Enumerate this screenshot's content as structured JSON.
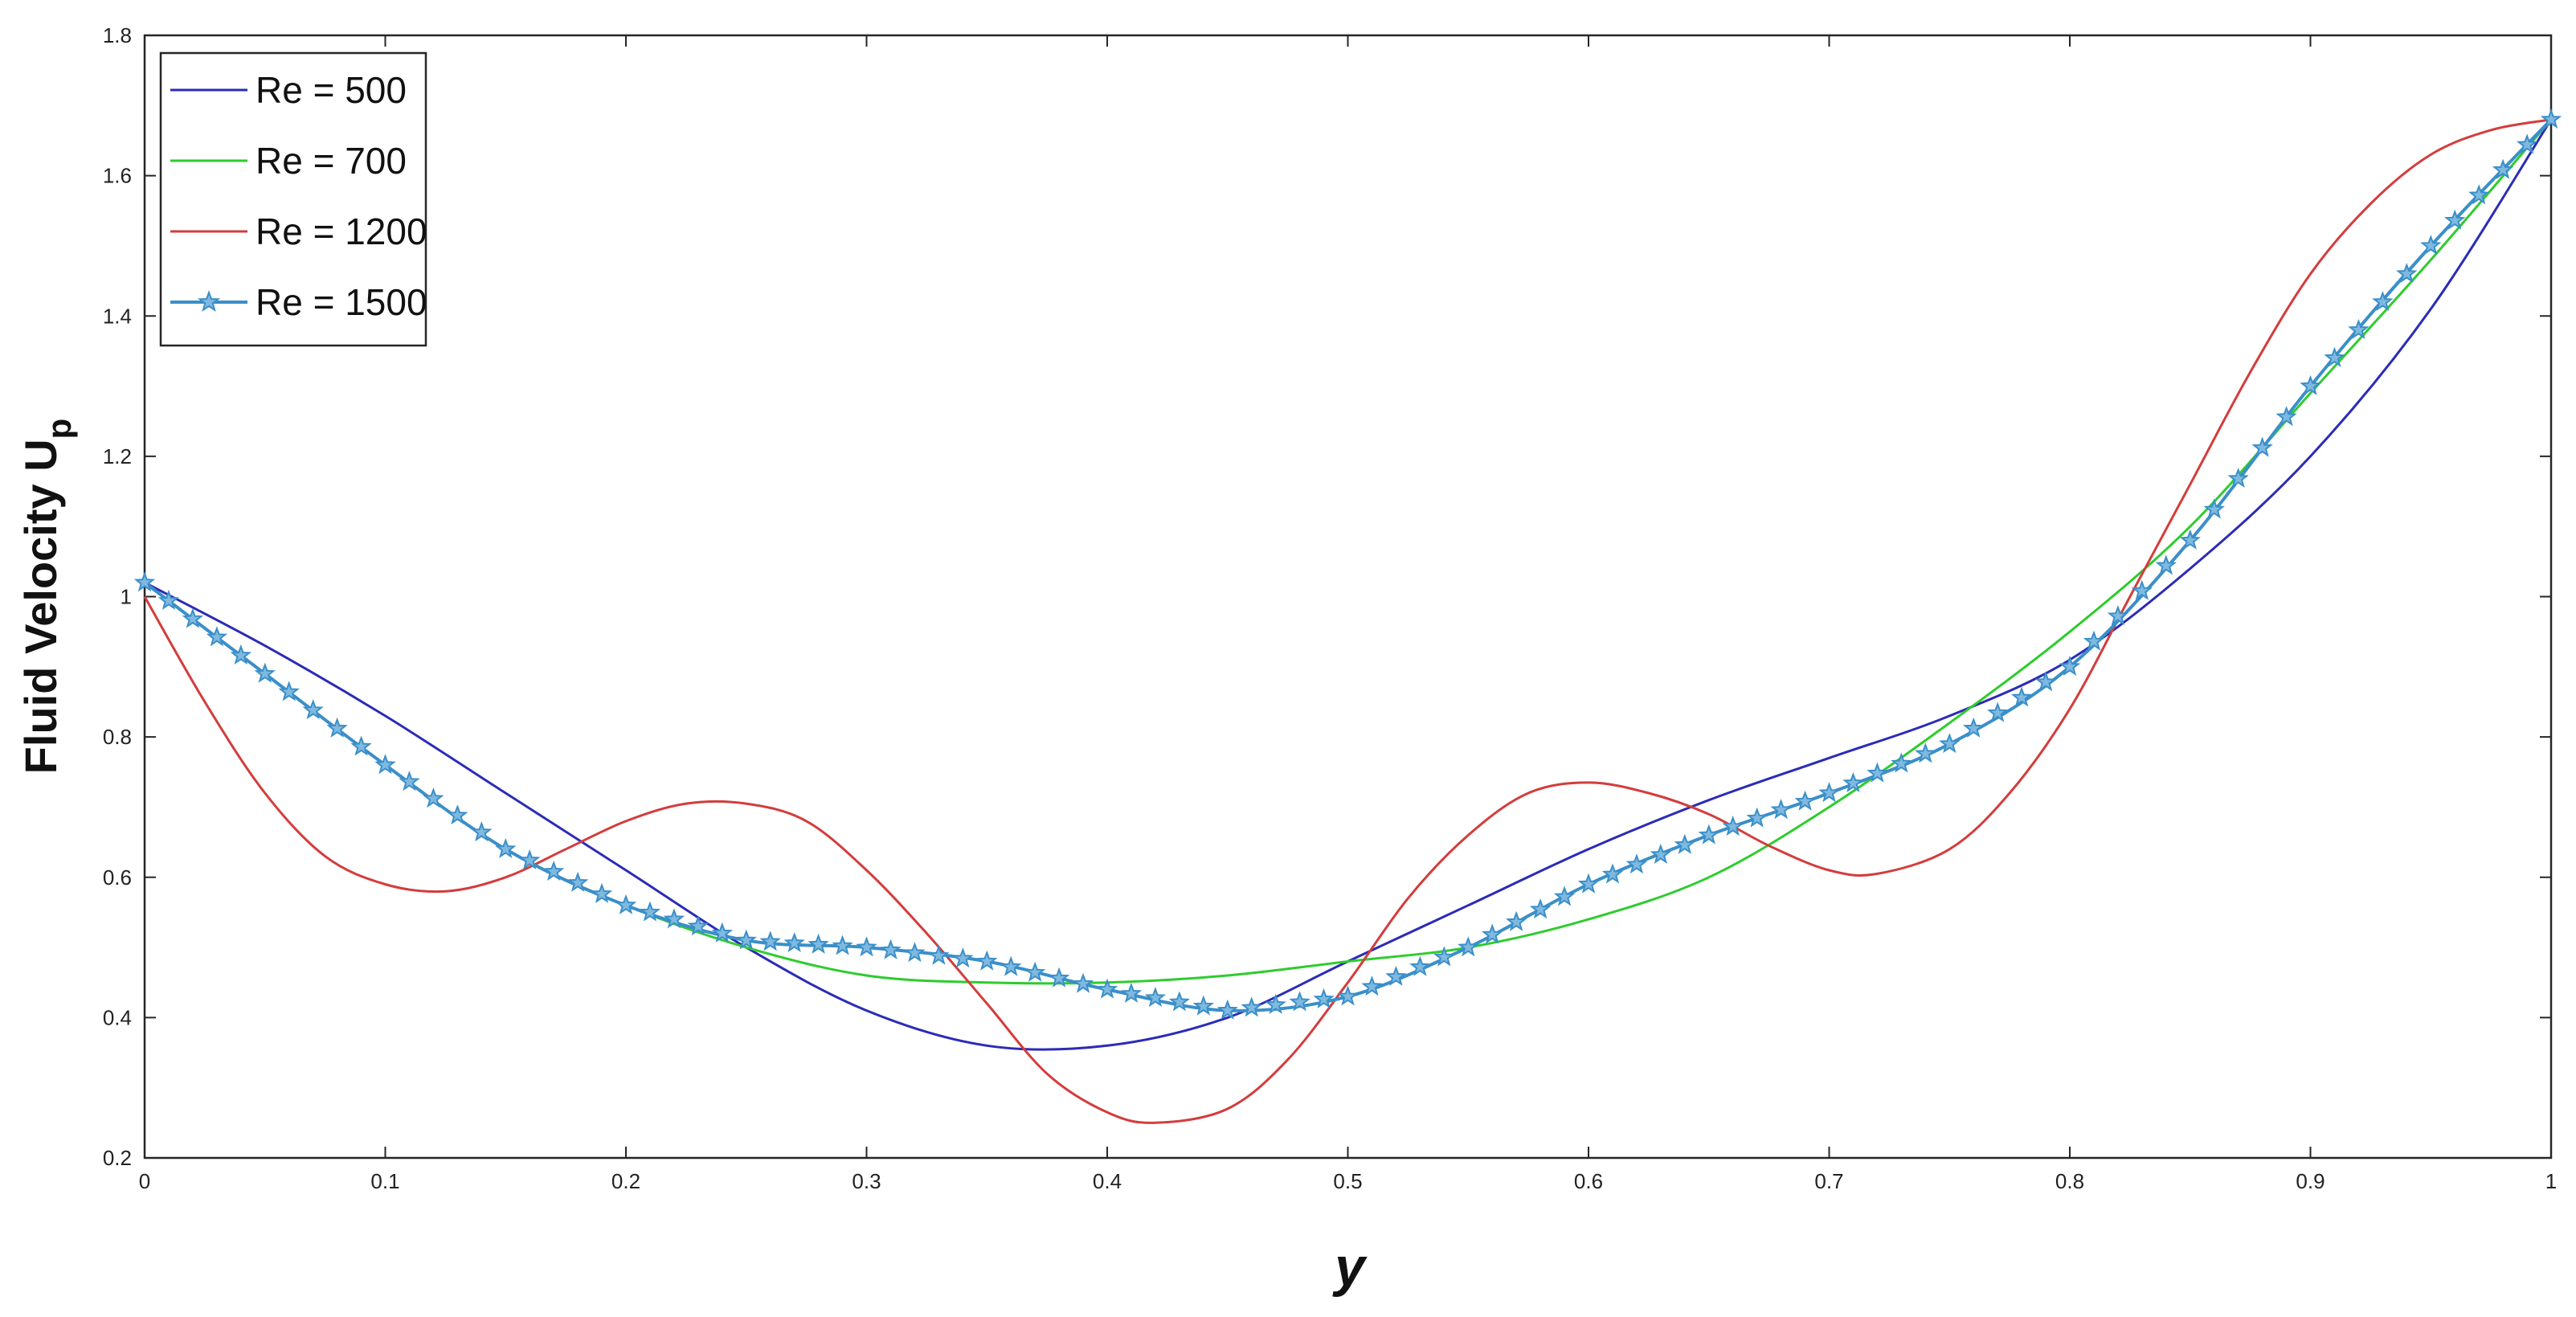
{
  "chart_data": {
    "type": "line",
    "title": "",
    "xlabel": "y",
    "ylabel": "Fluid Velocity U",
    "ylabel_subscript": "p",
    "xlim": [
      0,
      1
    ],
    "ylim": [
      0.2,
      1.8
    ],
    "x_ticks": [
      "0",
      "0.1",
      "0.2",
      "0.3",
      "0.4",
      "0.5",
      "0.6",
      "0.7",
      "0.8",
      "0.9",
      "1"
    ],
    "y_ticks": [
      "0.2",
      "0.4",
      "0.6",
      "0.8",
      "1",
      "1.2",
      "1.4",
      "1.6",
      "1.8"
    ],
    "grid": false,
    "legend_position": "top-left",
    "series": [
      {
        "name": "Re = 500",
        "color": "#2b2bb8",
        "marker": "none",
        "x": [
          0,
          0.05,
          0.1,
          0.15,
          0.2,
          0.25,
          0.3,
          0.35,
          0.4,
          0.45,
          0.5,
          0.55,
          0.6,
          0.65,
          0.7,
          0.75,
          0.8,
          0.85,
          0.9,
          0.95,
          1.0
        ],
        "y": [
          1.02,
          0.93,
          0.83,
          0.72,
          0.61,
          0.5,
          0.41,
          0.36,
          0.36,
          0.4,
          0.48,
          0.56,
          0.64,
          0.71,
          0.77,
          0.83,
          0.91,
          1.04,
          1.2,
          1.41,
          1.68
        ]
      },
      {
        "name": "Re = 700",
        "color": "#2ecc2e",
        "marker": "none",
        "x": [
          0,
          0.05,
          0.1,
          0.15,
          0.2,
          0.25,
          0.3,
          0.35,
          0.4,
          0.45,
          0.5,
          0.55,
          0.6,
          0.65,
          0.7,
          0.75,
          0.8,
          0.85,
          0.9,
          0.95,
          1.0
        ],
        "y": [
          1.02,
          0.89,
          0.76,
          0.64,
          0.56,
          0.5,
          0.46,
          0.45,
          0.45,
          0.46,
          0.48,
          0.5,
          0.54,
          0.6,
          0.7,
          0.82,
          0.95,
          1.1,
          1.29,
          1.48,
          1.68
        ]
      },
      {
        "name": "Re = 1200",
        "color": "#d43c3c",
        "marker": "none",
        "x": [
          0,
          0.025,
          0.05,
          0.075,
          0.1,
          0.125,
          0.15,
          0.175,
          0.2,
          0.225,
          0.25,
          0.275,
          0.3,
          0.325,
          0.35,
          0.375,
          0.4,
          0.42,
          0.45,
          0.475,
          0.5,
          0.525,
          0.55,
          0.575,
          0.6,
          0.625,
          0.65,
          0.675,
          0.7,
          0.72,
          0.75,
          0.775,
          0.8,
          0.825,
          0.85,
          0.875,
          0.9,
          0.925,
          0.95,
          0.975,
          1.0
        ],
        "y": [
          1.0,
          0.85,
          0.72,
          0.63,
          0.59,
          0.58,
          0.6,
          0.64,
          0.68,
          0.705,
          0.705,
          0.68,
          0.61,
          0.52,
          0.42,
          0.32,
          0.265,
          0.25,
          0.27,
          0.34,
          0.45,
          0.57,
          0.66,
          0.72,
          0.735,
          0.72,
          0.69,
          0.645,
          0.61,
          0.605,
          0.64,
          0.72,
          0.84,
          1.0,
          1.16,
          1.32,
          1.46,
          1.56,
          1.63,
          1.665,
          1.68
        ]
      },
      {
        "name": "Re = 1500",
        "color": "#3a8fc9",
        "marker": "star",
        "x": [
          0,
          0.05,
          0.1,
          0.15,
          0.2,
          0.25,
          0.3,
          0.35,
          0.4,
          0.45,
          0.5,
          0.55,
          0.6,
          0.65,
          0.7,
          0.75,
          0.8,
          0.85,
          0.9,
          0.95,
          1.0
        ],
        "y": [
          1.02,
          0.89,
          0.76,
          0.64,
          0.56,
          0.51,
          0.5,
          0.48,
          0.44,
          0.41,
          0.43,
          0.5,
          0.59,
          0.66,
          0.72,
          0.79,
          0.9,
          1.08,
          1.3,
          1.5,
          1.68
        ]
      }
    ]
  }
}
